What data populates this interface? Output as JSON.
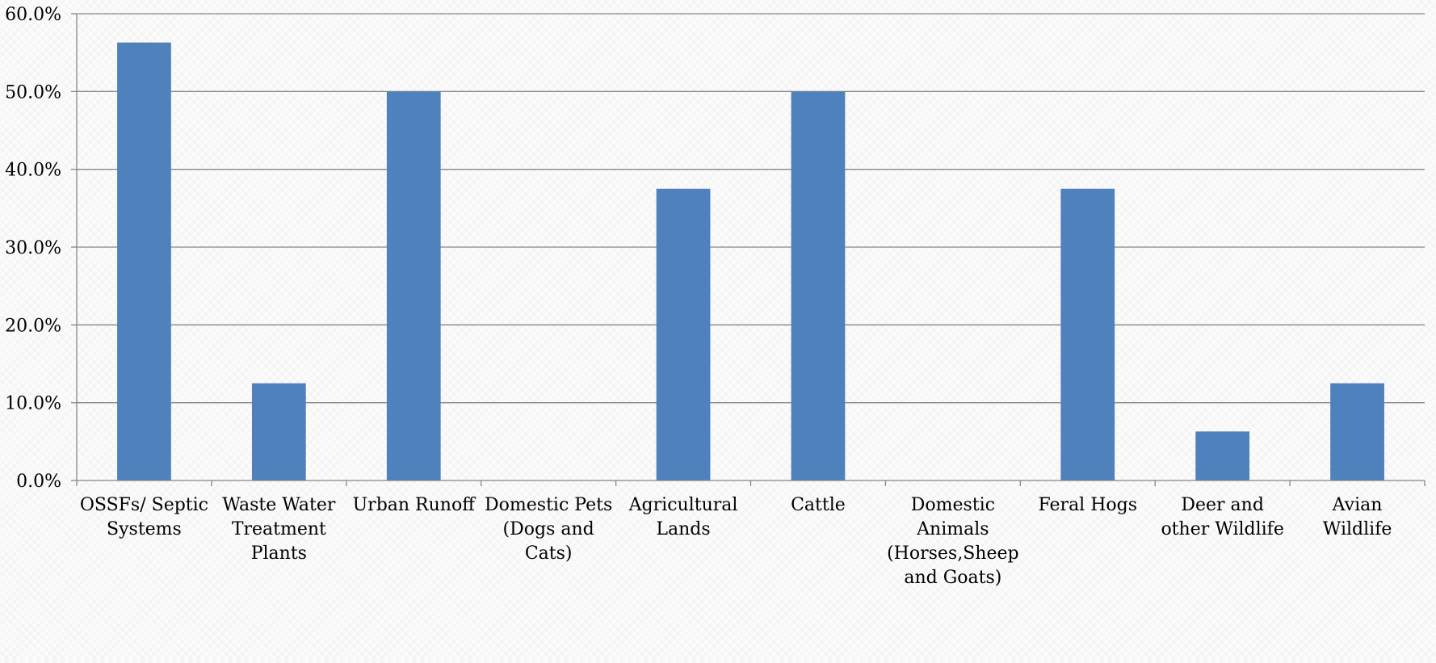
{
  "chart_data": {
    "type": "bar",
    "title": "",
    "xlabel": "",
    "ylabel": "",
    "ylim": [
      0,
      60
    ],
    "y_ticks": [
      "0.0%",
      "10.0%",
      "20.0%",
      "30.0%",
      "40.0%",
      "50.0%",
      "60.0%"
    ],
    "y_tick_values": [
      0,
      10,
      20,
      30,
      40,
      50,
      60
    ],
    "grid": true,
    "legend": "none",
    "categories": [
      [
        "OSSFs/ Septic",
        "Systems"
      ],
      [
        "Waste Water",
        "Treatment",
        "Plants"
      ],
      [
        "Urban Runoff"
      ],
      [
        "Domestic Pets",
        "(Dogs and",
        "Cats)"
      ],
      [
        "Agricultural",
        "Lands"
      ],
      [
        "Cattle"
      ],
      [
        "Domestic",
        "Animals",
        "(Horses,Sheep",
        "and Goats)"
      ],
      [
        "Feral Hogs"
      ],
      [
        "Deer and",
        "other Wildlife"
      ],
      [
        "Avian",
        "Wildlife"
      ]
    ],
    "values": [
      56.3,
      12.5,
      50.0,
      0.0,
      37.5,
      50.0,
      0.0,
      37.5,
      6.3,
      12.5
    ],
    "colors": {
      "bar": "#4f81bd",
      "grid": "#868686",
      "axis": "#868686"
    }
  }
}
